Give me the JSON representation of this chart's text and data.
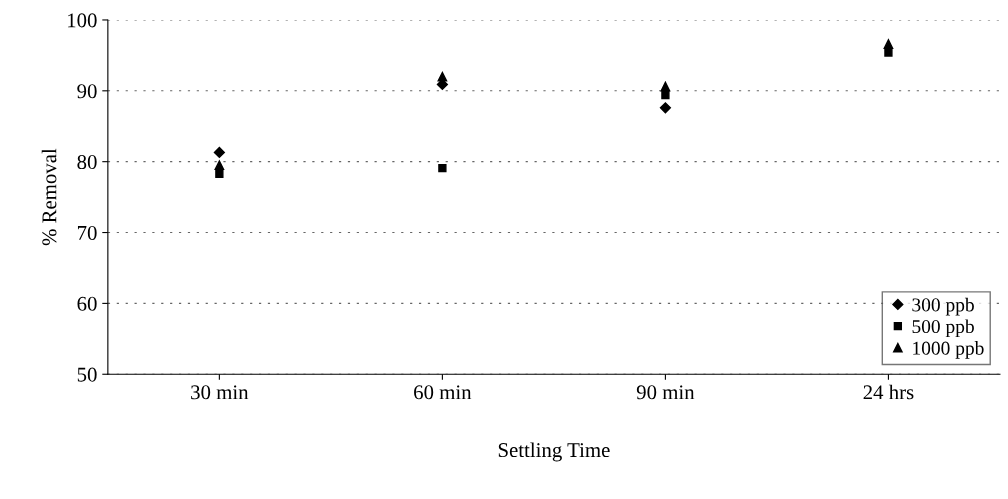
{
  "chart_data": {
    "type": "scatter",
    "xlabel": "Settling Time",
    "ylabel": "% Removal",
    "categories": [
      "30 min",
      "60 min",
      "90 min",
      "24 hrs"
    ],
    "series": [
      {
        "name": "300 ppb",
        "color": "#000000",
        "marker": "diamond",
        "values": [
          81.3,
          90.9,
          87.6,
          null
        ]
      },
      {
        "name": "500 ppb",
        "color": "#000000",
        "marker": "square",
        "values": [
          78.3,
          79.1,
          89.4,
          95.4
        ]
      },
      {
        "name": "1000 ppb",
        "color": "#000000",
        "marker": "triangle",
        "values": [
          79.5,
          92,
          90.6,
          96.6
        ]
      }
    ],
    "ylim": [
      50,
      100
    ],
    "yticks": [
      50,
      60,
      70,
      80,
      90,
      100
    ],
    "grid": "y",
    "legend": "bottom right"
  }
}
